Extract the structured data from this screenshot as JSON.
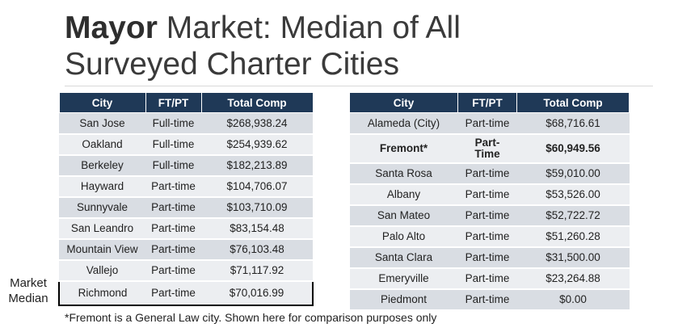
{
  "title": {
    "bold": "Mayor",
    "line1_rest": " Market: Median of All",
    "line2": "Surveyed Charter Cities"
  },
  "left_table": {
    "headers": [
      "City",
      "FT/PT",
      "Total Comp"
    ],
    "rows": [
      {
        "city": "San Jose",
        "ftpt": "Full-time",
        "comp": "$268,938.24"
      },
      {
        "city": "Oakland",
        "ftpt": "Full-time",
        "comp": "$254,939.62"
      },
      {
        "city": "Berkeley",
        "ftpt": "Full-time",
        "comp": "$182,213.89"
      },
      {
        "city": "Hayward",
        "ftpt": "Part-time",
        "comp": "$104,706.07"
      },
      {
        "city": "Sunnyvale",
        "ftpt": "Part-time",
        "comp": "$103,710.09"
      },
      {
        "city": "San Leandro",
        "ftpt": "Part-time",
        "comp": "$83,154.48"
      },
      {
        "city": "Mountain View",
        "ftpt": "Part-time",
        "comp": "$76,103.48"
      },
      {
        "city": "Vallejo",
        "ftpt": "Part-time",
        "comp": "$71,117.92"
      },
      {
        "city": "Richmond",
        "ftpt": "Part-time",
        "comp": "$70,016.99"
      }
    ]
  },
  "right_table": {
    "headers": [
      "City",
      "FT/PT",
      "Total Comp"
    ],
    "rows": [
      {
        "city": "Alameda (City)",
        "ftpt": "Part-time",
        "comp": "$68,716.61"
      },
      {
        "city": "Fremont*",
        "ftpt": "Part-Time",
        "comp": "$60,949.56"
      },
      {
        "city": "Santa Rosa",
        "ftpt": "Part-time",
        "comp": "$59,010.00"
      },
      {
        "city": "Albany",
        "ftpt": "Part-time",
        "comp": "$53,526.00"
      },
      {
        "city": "San Mateo",
        "ftpt": "Part-time",
        "comp": "$52,722.72"
      },
      {
        "city": "Palo Alto",
        "ftpt": "Part-time",
        "comp": "$51,260.28"
      },
      {
        "city": "Santa Clara",
        "ftpt": "Part-time",
        "comp": "$31,500.00"
      },
      {
        "city": "Emeryville",
        "ftpt": "Part-time",
        "comp": "$23,264.88"
      },
      {
        "city": "Piedmont",
        "ftpt": "Part-time",
        "comp": "$0.00"
      }
    ]
  },
  "median_label": "Market Median",
  "footnote": "*Fremont is a General Law city.  Shown here for comparison purposes only"
}
